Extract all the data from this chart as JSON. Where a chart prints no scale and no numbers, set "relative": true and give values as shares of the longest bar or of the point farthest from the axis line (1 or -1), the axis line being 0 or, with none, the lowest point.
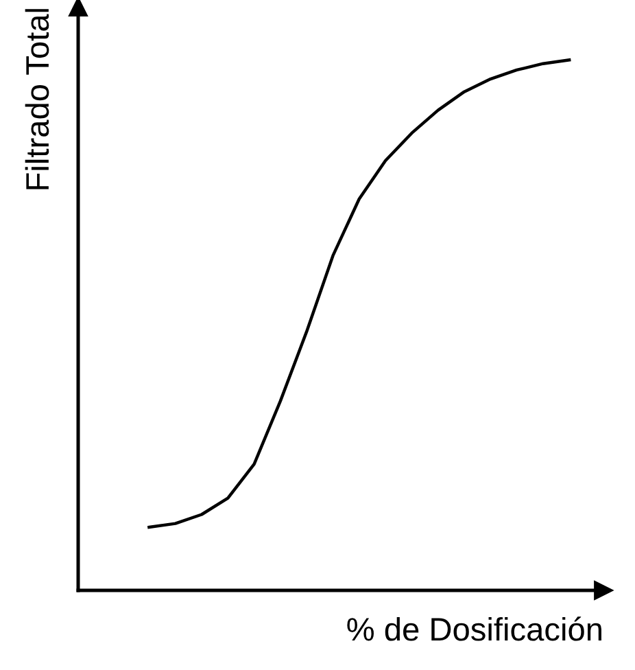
{
  "chart_data": {
    "type": "line",
    "relative": true,
    "xlabel": "% de Dosificación",
    "ylabel": "Filtrado Total",
    "categories": [
      null,
      null,
      null,
      null,
      null,
      null,
      null,
      null,
      null,
      null,
      null,
      null,
      null,
      null,
      null,
      null,
      null
    ],
    "series": [
      {
        "color": "#000000",
        "values": [
          0.119,
          0.126,
          0.143,
          0.174,
          0.238,
          0.357,
          0.488,
          0.631,
          0.738,
          0.81,
          0.862,
          0.905,
          0.94,
          0.964,
          0.981,
          0.993,
          1.0
        ]
      }
    ],
    "grid": false,
    "marker": "none",
    "line_style": "solid",
    "tick_labels": false
  }
}
